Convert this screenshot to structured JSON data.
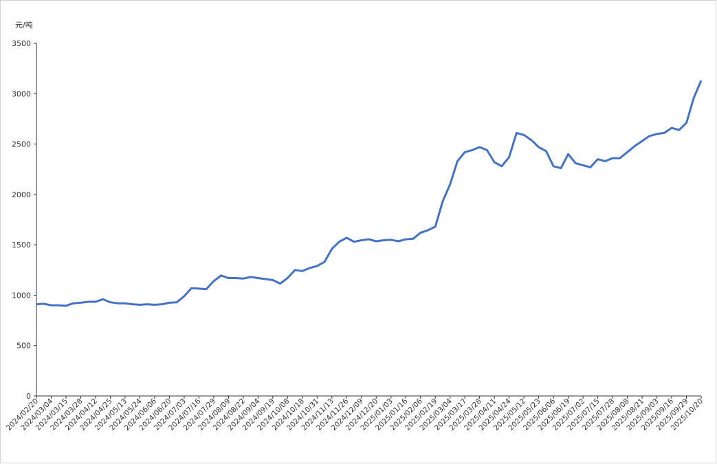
{
  "chart_data": {
    "type": "line",
    "y_label": "元/吨",
    "categories": [
      "2024/02/20",
      null,
      "2024/03/04",
      null,
      "2024/03/15",
      null,
      "2024/03/28",
      null,
      "2024/04/12",
      null,
      "2024/04/25",
      null,
      "2024/05/13",
      null,
      "2024/05/24",
      null,
      "2024/06/06",
      null,
      "2024/06/20",
      null,
      "2024/07/03",
      null,
      "2024/07/16",
      null,
      "2024/07/29",
      null,
      "2024/08/09",
      null,
      "2024/08/22",
      null,
      "2024/09/04",
      null,
      "2024/09/19",
      null,
      "2024/10/08",
      null,
      "2024/10/18",
      null,
      "2024/10/31",
      null,
      "2024/11/13",
      null,
      "2024/11/26",
      null,
      "2024/12/09",
      null,
      "2024/12/20",
      null,
      "2025/01/03",
      null,
      "2025/01/16",
      null,
      "2025/02/06",
      null,
      "2025/02/19",
      null,
      "2025/03/04",
      null,
      "2025/03/17",
      null,
      "2025/03/28",
      null,
      "2025/04/11",
      null,
      "2025/04/24",
      null,
      "2025/05/12",
      null,
      "2025/05/23",
      null,
      "2025/06/06",
      null,
      "2025/06/19",
      null,
      "2025/07/02",
      null,
      "2025/07/15",
      null,
      "2025/07/28",
      null,
      "2025/08/08",
      null,
      "2025/08/21",
      null,
      "2025/09/03",
      null,
      "2025/09/16",
      null,
      "2025/09/29",
      null,
      "2025/10/20"
    ],
    "values": [
      910,
      915,
      900,
      900,
      895,
      920,
      925,
      935,
      935,
      960,
      930,
      920,
      920,
      910,
      905,
      910,
      905,
      910,
      925,
      930,
      990,
      1070,
      1065,
      1060,
      1140,
      1195,
      1170,
      1170,
      1165,
      1180,
      1170,
      1160,
      1150,
      1115,
      1170,
      1250,
      1240,
      1270,
      1290,
      1330,
      1460,
      1530,
      1570,
      1530,
      1545,
      1555,
      1535,
      1545,
      1550,
      1535,
      1555,
      1560,
      1620,
      1645,
      1680,
      1930,
      2100,
      2330,
      2420,
      2440,
      2470,
      2440,
      2320,
      2280,
      2370,
      2610,
      2590,
      2540,
      2470,
      2430,
      2280,
      2260,
      2400,
      2310,
      2290,
      2270,
      2350,
      2330,
      2360,
      2360,
      2420,
      2480,
      2530,
      2580,
      2600,
      2610,
      2660,
      2640,
      2710,
      2960,
      3130
    ],
    "color": "#4472c4",
    "ylim": [
      0,
      3500
    ],
    "yticks": [
      0,
      500,
      1000,
      1500,
      2000,
      2500,
      3000,
      3500
    ]
  }
}
